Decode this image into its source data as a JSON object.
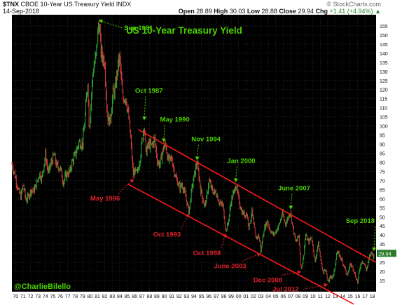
{
  "header": {
    "symbol": "$TNX",
    "description": "CBOE 10-Year US Treasury Yield INDX",
    "date": "14-Sep-2018",
    "source": "© StockCharts.com",
    "open_label": "Open",
    "open_value": "28.89",
    "high_label": "High",
    "high_value": "30.03",
    "low_label": "Low",
    "low_value": "28.88",
    "close_label": "Close",
    "close_value": "29.94",
    "chg_label": "Chg",
    "chg_value": "+1.41 (+4.94%)",
    "chg_marker": "▲"
  },
  "watermark": "@CharlieBilello",
  "colors": {
    "background": "#000000",
    "channel": "#ff1a1a",
    "green_label": "#4cd000",
    "red_label": "#e0202a",
    "up_candle": "#2fa82f",
    "down_candle": "#d23a3a",
    "price_tag": "#2a7a2a"
  },
  "chart_data": {
    "type": "candlestick",
    "title": "US 10-Year Treasury Yield",
    "xlabel": "",
    "ylabel": "",
    "x_range": [
      1970,
      2019
    ],
    "ylim": [
      10,
      160
    ],
    "yticks": [
      15,
      20,
      25,
      30,
      35,
      40,
      45,
      50,
      55,
      60,
      65,
      70,
      75,
      80,
      85,
      90,
      95,
      100,
      105,
      110,
      115,
      120,
      125,
      130,
      135,
      140,
      145,
      150,
      155
    ],
    "xticks": [
      "70",
      "71",
      "72",
      "73",
      "74",
      "75",
      "76",
      "77",
      "78",
      "79",
      "80",
      "81",
      "82",
      "83",
      "84",
      "85",
      "86",
      "87",
      "88",
      "89",
      "90",
      "91",
      "92",
      "93",
      "94",
      "95",
      "96",
      "97",
      "98",
      "99",
      "00",
      "01",
      "02",
      "03",
      "04",
      "05",
      "06",
      "07",
      "08",
      "09",
      "10",
      "11",
      "12",
      "13",
      "14",
      "15",
      "16",
      "17",
      "18"
    ],
    "last_value": "29.94",
    "grid": true,
    "series": [
      {
        "path": [
          [
            1970.0,
            79
          ],
          [
            1970.4,
            73
          ],
          [
            1970.9,
            64
          ],
          [
            1971.2,
            61
          ],
          [
            1971.5,
            68
          ],
          [
            1971.9,
            59
          ],
          [
            1972.2,
            61
          ],
          [
            1972.6,
            65
          ],
          [
            1972.9,
            64
          ],
          [
            1973.3,
            68
          ],
          [
            1973.7,
            74
          ],
          [
            1974.0,
            71
          ],
          [
            1974.5,
            84
          ],
          [
            1974.9,
            74
          ],
          [
            1975.3,
            80
          ],
          [
            1975.7,
            84
          ],
          [
            1976.0,
            78
          ],
          [
            1976.5,
            77
          ],
          [
            1976.9,
            69
          ],
          [
            1977.3,
            73
          ],
          [
            1977.8,
            75
          ],
          [
            1978.1,
            80
          ],
          [
            1978.6,
            85
          ],
          [
            1979.0,
            91
          ],
          [
            1979.5,
            90
          ],
          [
            1979.8,
            102
          ],
          [
            1980.2,
            125
          ],
          [
            1980.4,
            98
          ],
          [
            1980.6,
            110
          ],
          [
            1980.9,
            130
          ],
          [
            1981.3,
            138
          ],
          [
            1981.7,
            158
          ],
          [
            1982.0,
            140
          ],
          [
            1982.5,
            135
          ],
          [
            1982.8,
            106
          ],
          [
            1983.2,
            102
          ],
          [
            1983.6,
            118
          ],
          [
            1983.9,
            120
          ],
          [
            1984.3,
            134
          ],
          [
            1984.5,
            138
          ],
          [
            1984.9,
            115
          ],
          [
            1985.3,
            116
          ],
          [
            1985.7,
            105
          ],
          [
            1986.0,
            92
          ],
          [
            1986.3,
            73
          ],
          [
            1986.5,
            75
          ],
          [
            1986.9,
            74
          ],
          [
            1987.3,
            84
          ],
          [
            1987.8,
            102
          ],
          [
            1988.0,
            85
          ],
          [
            1988.4,
            90
          ],
          [
            1988.8,
            89
          ],
          [
            1989.2,
            93
          ],
          [
            1989.6,
            80
          ],
          [
            1989.9,
            79
          ],
          [
            1990.4,
            88
          ],
          [
            1990.7,
            90
          ],
          [
            1991.0,
            81
          ],
          [
            1991.5,
            82
          ],
          [
            1992.0,
            72
          ],
          [
            1992.6,
            66
          ],
          [
            1992.9,
            68
          ],
          [
            1993.5,
            59
          ],
          [
            1993.8,
            53
          ],
          [
            1994.3,
            68
          ],
          [
            1994.9,
            80
          ],
          [
            1995.4,
            65
          ],
          [
            1995.9,
            56
          ],
          [
            1996.2,
            60
          ],
          [
            1996.5,
            70
          ],
          [
            1997.0,
            64
          ],
          [
            1997.5,
            63
          ],
          [
            1997.9,
            58
          ],
          [
            1998.4,
            56
          ],
          [
            1998.8,
            42
          ],
          [
            1999.1,
            47
          ],
          [
            1999.5,
            59
          ],
          [
            1999.9,
            64
          ],
          [
            2000.1,
            68
          ],
          [
            2000.5,
            60
          ],
          [
            2000.9,
            53
          ],
          [
            2001.3,
            51
          ],
          [
            2001.6,
            52
          ],
          [
            2001.9,
            44
          ],
          [
            2002.3,
            53
          ],
          [
            2002.8,
            38
          ],
          [
            2003.2,
            40
          ],
          [
            2003.5,
            31
          ],
          [
            2003.9,
            43
          ],
          [
            2004.4,
            48
          ],
          [
            2004.7,
            43
          ],
          [
            2005.2,
            40
          ],
          [
            2005.5,
            42
          ],
          [
            2005.9,
            45
          ],
          [
            2006.4,
            52
          ],
          [
            2006.8,
            46
          ],
          [
            2007.0,
            48
          ],
          [
            2007.5,
            53
          ],
          [
            2007.8,
            44
          ],
          [
            2008.2,
            36
          ],
          [
            2008.6,
            40
          ],
          [
            2008.9,
            21
          ],
          [
            2009.2,
            27
          ],
          [
            2009.5,
            40
          ],
          [
            2009.9,
            36
          ],
          [
            2010.3,
            39
          ],
          [
            2010.8,
            25
          ],
          [
            2011.2,
            36
          ],
          [
            2011.6,
            25
          ],
          [
            2011.9,
            19
          ],
          [
            2012.2,
            22
          ],
          [
            2012.5,
            14
          ],
          [
            2012.9,
            17
          ],
          [
            2013.3,
            18
          ],
          [
            2013.7,
            30
          ],
          [
            2013.9,
            30
          ],
          [
            2014.3,
            27
          ],
          [
            2014.8,
            22
          ],
          [
            2015.1,
            17
          ],
          [
            2015.5,
            24
          ],
          [
            2015.9,
            22
          ],
          [
            2016.2,
            18
          ],
          [
            2016.5,
            14
          ],
          [
            2016.9,
            24
          ],
          [
            2017.2,
            26
          ],
          [
            2017.7,
            21
          ],
          [
            2017.9,
            24
          ],
          [
            2018.1,
            28
          ],
          [
            2018.4,
            31
          ],
          [
            2018.6,
            28
          ],
          [
            2018.71,
            29.94
          ]
        ]
      }
    ],
    "channel": {
      "upper": [
        [
          1987.0,
          98
        ],
        [
          2019.0,
          25
        ]
      ],
      "lower": [
        [
          1985.6,
          68
        ],
        [
          2016.0,
          2
        ]
      ]
    },
    "annotations": [
      {
        "text": "Sep 1981",
        "color": "green",
        "point": [
          1981.7,
          157
        ]
      },
      {
        "text": "Oct 1987",
        "color": "green",
        "point": [
          1987.8,
          102
        ]
      },
      {
        "text": "May 1990",
        "color": "green",
        "point": [
          1990.4,
          90
        ]
      },
      {
        "text": "Nov 1994",
        "color": "green",
        "point": [
          1994.9,
          80
        ]
      },
      {
        "text": "Jan 2000",
        "color": "green",
        "point": [
          2000.1,
          68
        ]
      },
      {
        "text": "June 2007",
        "color": "green",
        "point": [
          2007.5,
          53
        ]
      },
      {
        "text": "Sep 2018",
        "color": "green",
        "point": [
          2018.7,
          30
        ]
      },
      {
        "text": "May 1986",
        "color": "red",
        "point": [
          1986.4,
          72
        ]
      },
      {
        "text": "Oct 1993",
        "color": "red",
        "point": [
          1993.8,
          53
        ]
      },
      {
        "text": "Oct 1998",
        "color": "red",
        "point": [
          1998.8,
          42
        ]
      },
      {
        "text": "June 2003",
        "color": "red",
        "point": [
          2003.5,
          31
        ]
      },
      {
        "text": "Dec 2008",
        "color": "red",
        "point": [
          2008.9,
          21
        ]
      },
      {
        "text": "Jul 2012",
        "color": "red",
        "point": [
          2012.5,
          14
        ]
      }
    ]
  }
}
